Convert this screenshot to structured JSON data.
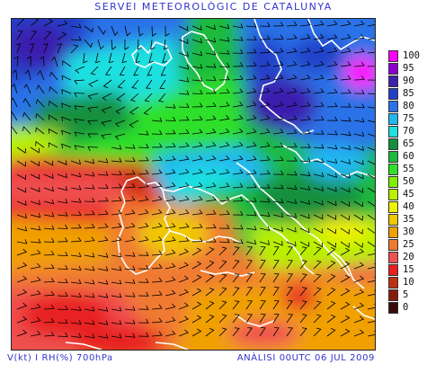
{
  "header": {
    "title": "SERVEI METEOROLÒGIC DE CATALUNYA"
  },
  "footer": {
    "left_label": "V(kt) I RH(%) 700hPa",
    "right_label": "ANÀLISI 00UTC 06 JUL 2009"
  },
  "colors": {
    "header_text": "#3333cc",
    "footer_text": "#3333cc",
    "coastline": "#ffffff",
    "wind_barb": "#000000"
  },
  "legend": {
    "items": [
      {
        "label": "100",
        "color": "#ff00ff"
      },
      {
        "label": "95",
        "color": "#8b00cc"
      },
      {
        "label": "90",
        "color": "#3b1fae"
      },
      {
        "label": "85",
        "color": "#2040c8"
      },
      {
        "label": "80",
        "color": "#2a72e8"
      },
      {
        "label": "75",
        "color": "#20b8f0"
      },
      {
        "label": "70",
        "color": "#1fe0e0"
      },
      {
        "label": "65",
        "color": "#14903c"
      },
      {
        "label": "60",
        "color": "#1cba3c"
      },
      {
        "label": "55",
        "color": "#2ee02a"
      },
      {
        "label": "50",
        "color": "#7ff000"
      },
      {
        "label": "45",
        "color": "#b8f000"
      },
      {
        "label": "40",
        "color": "#f0f000"
      },
      {
        "label": "35",
        "color": "#f0c800"
      },
      {
        "label": "30",
        "color": "#f0a000"
      },
      {
        "label": "25",
        "color": "#f07a30"
      },
      {
        "label": "20",
        "color": "#f05050"
      },
      {
        "label": "15",
        "color": "#e82020"
      },
      {
        "label": "10",
        "color": "#c03010"
      },
      {
        "label": "5",
        "color": "#8a1a0a"
      },
      {
        "label": "0",
        "color": "#3a0a0a"
      }
    ]
  }
}
